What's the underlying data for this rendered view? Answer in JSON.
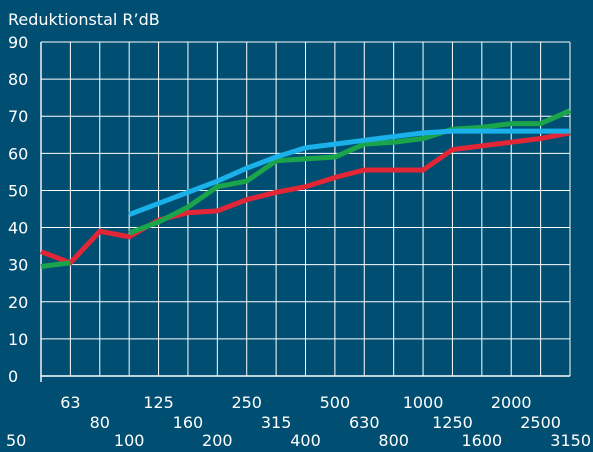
{
  "chart_data": {
    "type": "line",
    "title": "Reduktionstal R’dB",
    "xlabel": "",
    "ylabel": "",
    "ylim": [
      0,
      90
    ],
    "yticks": [
      0,
      10,
      20,
      30,
      40,
      50,
      60,
      70,
      80,
      90
    ],
    "grid": true,
    "x": [
      "50",
      "63",
      "80",
      "100",
      "125",
      "160",
      "200",
      "250",
      "315",
      "400",
      "500",
      "630",
      "800",
      "1000",
      "1250",
      "1600",
      "2000",
      "2500",
      "3150"
    ],
    "series": [
      {
        "color": "#e32636",
        "values": [
          33.5,
          30.5,
          39,
          37.5,
          42,
          44,
          44.5,
          47.5,
          49.5,
          51,
          53.5,
          55.5,
          55.5,
          55.5,
          61,
          62,
          63,
          64,
          65.5
        ]
      },
      {
        "color": "#1ba54b",
        "values": [
          29.5,
          30.5,
          null,
          38.5,
          41.5,
          45.5,
          51,
          52.5,
          58,
          58.5,
          59,
          62.5,
          63,
          64,
          66.5,
          67,
          68,
          68,
          71.5
        ]
      },
      {
        "color": "#1ab0ea",
        "values": [
          null,
          null,
          null,
          43.5,
          46.5,
          49.5,
          52.5,
          56,
          59,
          61.5,
          62.5,
          63.5,
          64.5,
          65.5,
          66,
          66,
          66,
          66,
          66
        ]
      }
    ]
  }
}
